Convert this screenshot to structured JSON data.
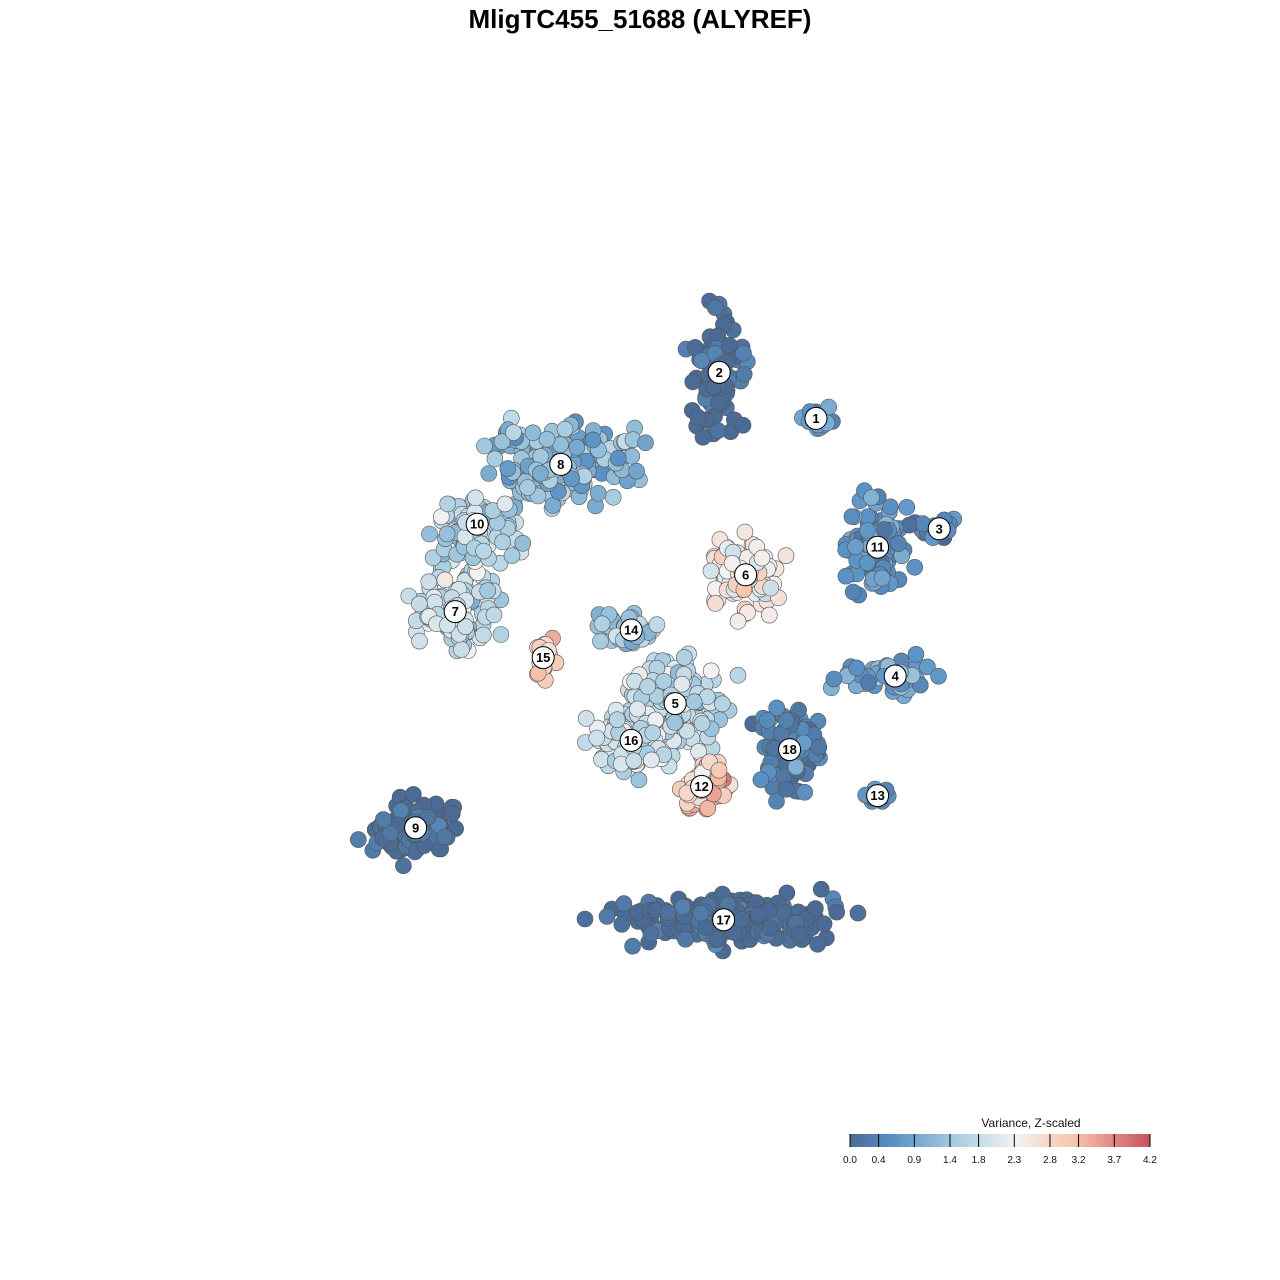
{
  "chart_data": {
    "type": "scatter",
    "title": "MligTC455_51688 (ALYREF)",
    "xlabel": "",
    "ylabel": "",
    "grid": false,
    "legend": {
      "title": "Variance, Z-scaled",
      "placement": "bottom-right",
      "ticks": [
        "0.0",
        "0.4",
        "0.9",
        "1.4",
        "1.8",
        "2.3",
        "2.8",
        "3.2",
        "3.7",
        "4.2"
      ],
      "range": [
        0.0,
        4.2
      ]
    },
    "colorscale": [
      "#4a6b96",
      "#5b93c6",
      "#a6cce0",
      "#f2f2f2",
      "#f7c3aa",
      "#c9505f"
    ],
    "clusters": [
      {
        "label": "1",
        "x": 0.7,
        "y": 0.73,
        "value": 0.9
      },
      {
        "label": "2",
        "x": 0.59,
        "y": 0.78,
        "value": 0.1
      },
      {
        "label": "3",
        "x": 0.84,
        "y": 0.61,
        "value": 0.6
      },
      {
        "label": "4",
        "x": 0.79,
        "y": 0.45,
        "value": 1.0
      },
      {
        "label": "5",
        "x": 0.54,
        "y": 0.42,
        "value": 1.9
      },
      {
        "label": "6",
        "x": 0.62,
        "y": 0.56,
        "value": 2.7
      },
      {
        "label": "7",
        "x": 0.29,
        "y": 0.52,
        "value": 2.0
      },
      {
        "label": "8",
        "x": 0.41,
        "y": 0.68,
        "value": 1.4
      },
      {
        "label": "9",
        "x": 0.245,
        "y": 0.285,
        "value": 0.1
      },
      {
        "label": "10",
        "x": 0.315,
        "y": 0.615,
        "value": 1.9
      },
      {
        "label": "11",
        "x": 0.77,
        "y": 0.59,
        "value": 0.8
      },
      {
        "label": "12",
        "x": 0.57,
        "y": 0.33,
        "value": 3.2
      },
      {
        "label": "13",
        "x": 0.77,
        "y": 0.32,
        "value": 0.7
      },
      {
        "label": "14",
        "x": 0.49,
        "y": 0.5,
        "value": 1.6
      },
      {
        "label": "15",
        "x": 0.39,
        "y": 0.47,
        "value": 3.0
      },
      {
        "label": "16",
        "x": 0.49,
        "y": 0.38,
        "value": 2.1
      },
      {
        "label": "17",
        "x": 0.595,
        "y": 0.185,
        "value": 0.0
      },
      {
        "label": "18",
        "x": 0.67,
        "y": 0.37,
        "value": 0.5
      }
    ]
  }
}
